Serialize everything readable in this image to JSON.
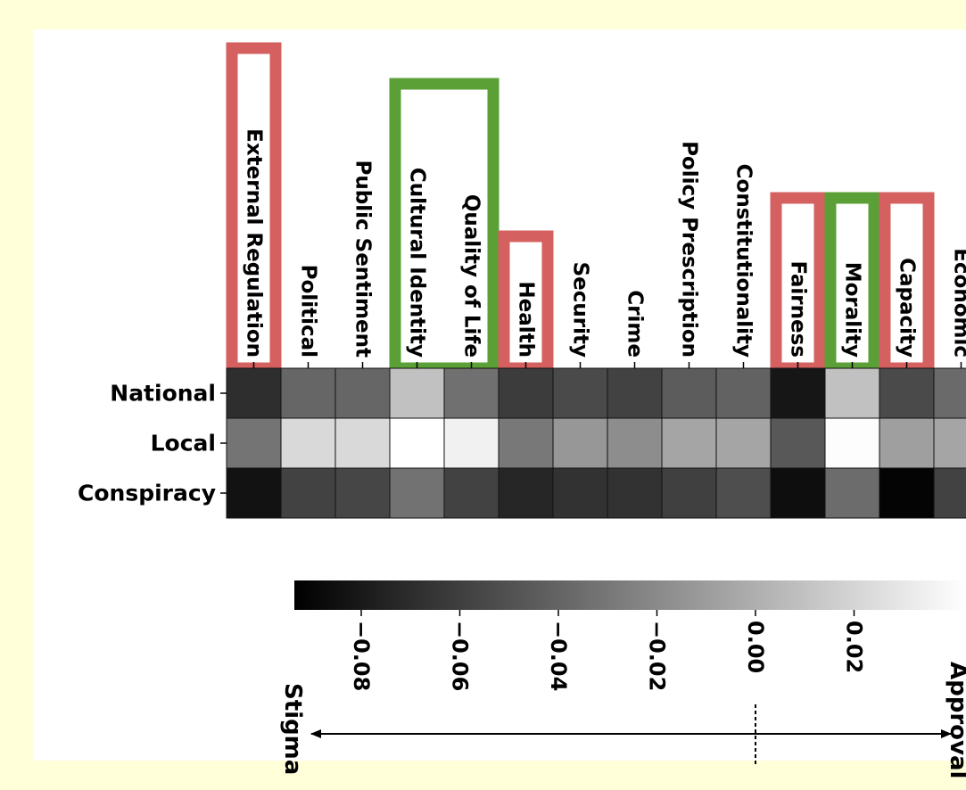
{
  "chart_data": {
    "type": "heatmap",
    "colormap": "grayscale",
    "columns": [
      "External Regulation",
      "Political",
      "Public Sentiment",
      "Cultural Identity",
      "Quality of Life",
      "Health",
      "Security",
      "Crime",
      "Policy Prescription",
      "Constitutionality",
      "Fairness",
      "Morality",
      "Capacity",
      "Economic"
    ],
    "rows": [
      "National",
      "Local",
      "Conspiracy"
    ],
    "values": [
      [
        -0.07,
        -0.042,
        -0.042,
        0.004,
        -0.037,
        -0.063,
        -0.056,
        -0.06,
        -0.047,
        -0.044,
        -0.082,
        0.004,
        -0.056,
        -0.04
      ],
      [
        -0.035,
        0.016,
        0.016,
        0.036,
        0.028,
        -0.033,
        -0.017,
        -0.022,
        -0.01,
        -0.01,
        -0.049,
        0.034,
        -0.013,
        -0.01
      ],
      [
        -0.084,
        -0.06,
        -0.058,
        -0.036,
        -0.06,
        -0.074,
        -0.068,
        -0.068,
        -0.061,
        -0.054,
        -0.086,
        -0.039,
        -0.091,
        -0.06
      ]
    ],
    "highlights": [
      {
        "column": "External Regulation",
        "color": "#d46060"
      },
      {
        "column": "Cultural Identity",
        "color": "#5aa036"
      },
      {
        "column": "Quality of Life",
        "color": "#5aa036"
      },
      {
        "column": "Health",
        "color": "#d46060"
      },
      {
        "column": "Fairness",
        "color": "#d46060"
      },
      {
        "column": "Morality",
        "color": "#5aa036"
      },
      {
        "column": "Capacity",
        "color": "#d46060"
      }
    ],
    "colorbar": {
      "vmin": -0.093,
      "vmax": 0.035,
      "ticks": [
        -0.08,
        -0.06,
        -0.04,
        -0.02,
        0.0,
        0.02
      ],
      "tick_labels": [
        "−0.08",
        "−0.06",
        "−0.04",
        "−0.02",
        "0.00",
        "0.02"
      ]
    },
    "scale_labels": {
      "left": "Stigma",
      "right": "Approval"
    }
  }
}
